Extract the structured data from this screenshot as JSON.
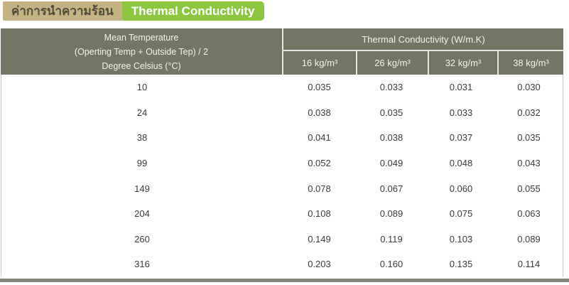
{
  "title": {
    "thai": "ค่าการนำความร้อน",
    "english": "Thermal Conductivity"
  },
  "colors": {
    "title_thai_bg": "#c6b383",
    "title_thai_text": "#4f4b37",
    "title_english_bg": "#8cc63f",
    "title_english_text": "#ffffff",
    "header_bg": "#757564",
    "header_text": "#f4f3ec",
    "divider": "#e8e7df",
    "body_border": "#c9c9c2",
    "body_text": "#3b3b3b",
    "bottom_bar": "#83837a"
  },
  "table": {
    "row_header": {
      "line1": "Mean Temperature",
      "line2": "(Operting Temp + Outside Tep) / 2",
      "line3": "Degree Celsius (°C)"
    },
    "group_header": "Thermal Conductivity (W/m.K)",
    "density_columns": [
      "16 kg/m³",
      "26 kg/m³",
      "32 kg/m³",
      "38 kg/m³"
    ],
    "rows": [
      {
        "temp": "10",
        "values": [
          "0.035",
          "0.033",
          "0.031",
          "0.030"
        ]
      },
      {
        "temp": "24",
        "values": [
          "0.038",
          "0.035",
          "0.033",
          "0.032"
        ]
      },
      {
        "temp": "38",
        "values": [
          "0.041",
          "0.038",
          "0.037",
          "0.035"
        ]
      },
      {
        "temp": "99",
        "values": [
          "0.052",
          "0.049",
          "0.048",
          "0.043"
        ]
      },
      {
        "temp": "149",
        "values": [
          "0.078",
          "0.067",
          "0.060",
          "0.055"
        ]
      },
      {
        "temp": "204",
        "values": [
          "0.108",
          "0.089",
          "0.075",
          "0.063"
        ]
      },
      {
        "temp": "260",
        "values": [
          "0.149",
          "0.119",
          "0.103",
          "0.089"
        ]
      },
      {
        "temp": "316",
        "values": [
          "0.203",
          "0.160",
          "0.135",
          "0.114"
        ]
      }
    ]
  }
}
